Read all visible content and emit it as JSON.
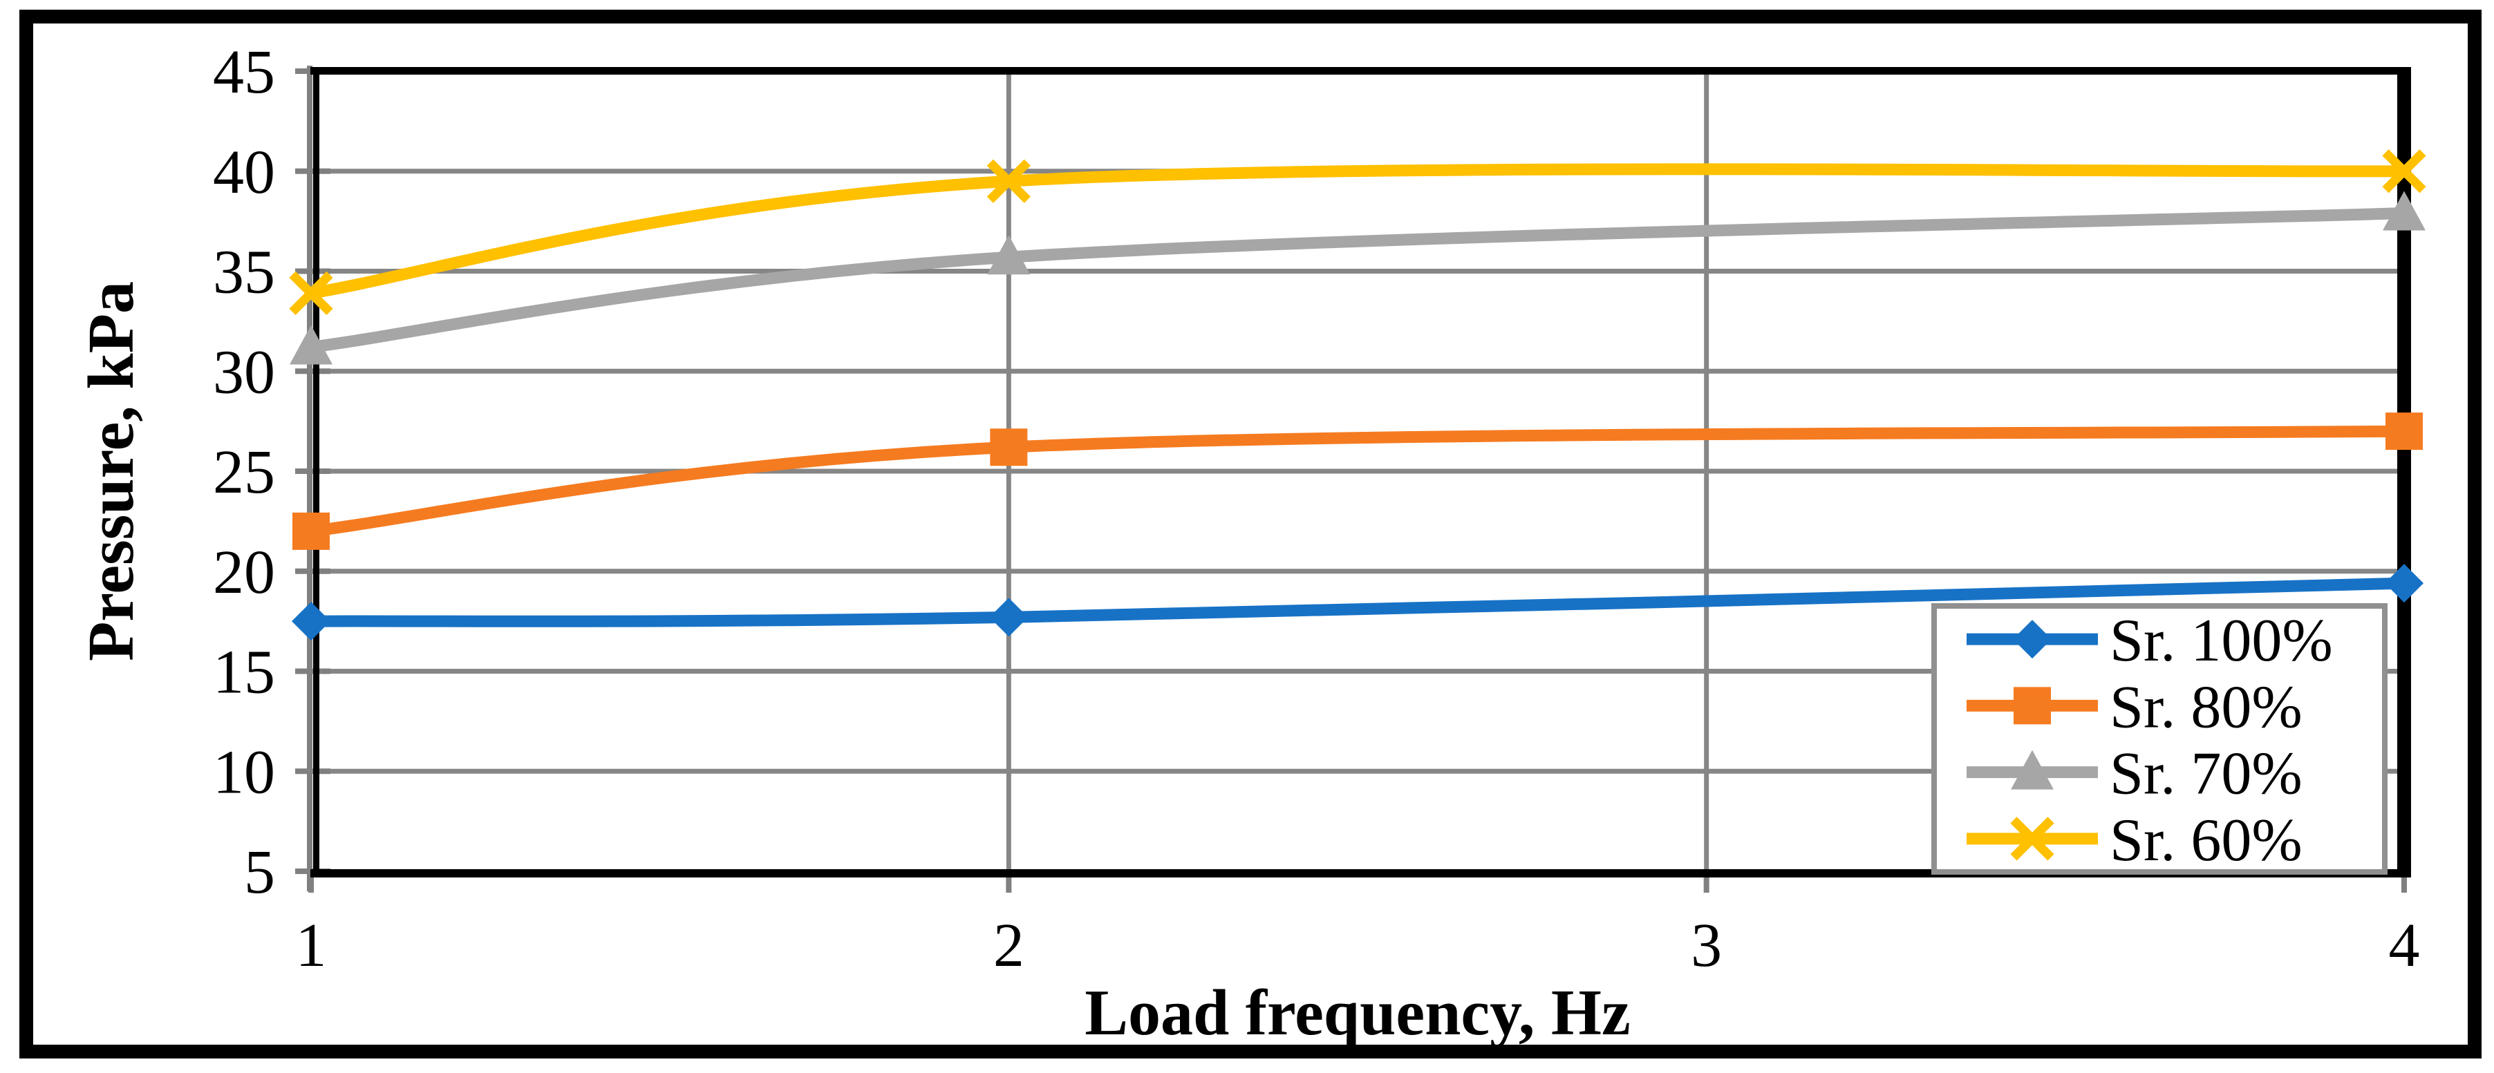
{
  "chart_data": {
    "type": "line",
    "subtype": "scatter-with-smooth-lines",
    "title": "",
    "xlabel": "Load frequency, Hz",
    "ylabel": "Pressure, kPa",
    "x": [
      1,
      2,
      4
    ],
    "x_ticks": [
      "1",
      "2",
      "3",
      "4"
    ],
    "y_ticks": [
      45,
      40,
      35,
      30,
      25,
      20,
      15,
      10,
      5
    ],
    "xlim": [
      1,
      4
    ],
    "ylim": [
      5,
      45
    ],
    "grid": "horizontal-every-5-and-vertical-at-x-ticks",
    "legend_position": "inside-bottom-right",
    "series": [
      {
        "name": "Sr. 100%",
        "marker": "diamond",
        "color": "#1772C6",
        "values": [
          17.5,
          17.7,
          19.4
        ]
      },
      {
        "name": "Sr. 80%",
        "marker": "square",
        "color": "#F57B20",
        "values": [
          22.0,
          26.2,
          27.0
        ]
      },
      {
        "name": "Sr. 70%",
        "marker": "triangle",
        "color": "#A6A6A6",
        "values": [
          31.2,
          35.7,
          37.9
        ]
      },
      {
        "name": "Sr. 60%",
        "marker": "x",
        "color": "#FFC000",
        "values": [
          33.9,
          39.5,
          40.0
        ]
      }
    ],
    "colors": {
      "background": "#FFFFFF",
      "gridline": "#868686",
      "axis": "#808080",
      "plot_border": "#000000",
      "outer_border": "#000000",
      "legend_border": "#909090",
      "legend_fill": "#FFFFFF",
      "text": "#000000"
    }
  }
}
